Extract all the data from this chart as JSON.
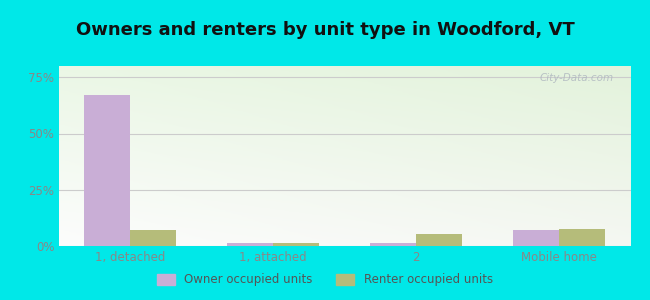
{
  "title": "Owners and renters by unit type in Woodford, VT",
  "categories": [
    "1, detached",
    "1, attached",
    "2",
    "Mobile home"
  ],
  "owner_values": [
    67.0,
    1.5,
    1.5,
    7.0
  ],
  "renter_values": [
    7.0,
    1.5,
    5.5,
    7.5
  ],
  "owner_color": "#c9aed6",
  "renter_color": "#b5bc7a",
  "yticks": [
    0,
    25,
    50,
    75
  ],
  "ylim": [
    0,
    80
  ],
  "legend_owner": "Owner occupied units",
  "legend_renter": "Renter occupied units",
  "outer_bg": "#00e8e8",
  "title_fontsize": 13,
  "bar_width": 0.32,
  "watermark": "City-Data.com",
  "tick_color": "#888888",
  "grid_color": "#cccccc"
}
